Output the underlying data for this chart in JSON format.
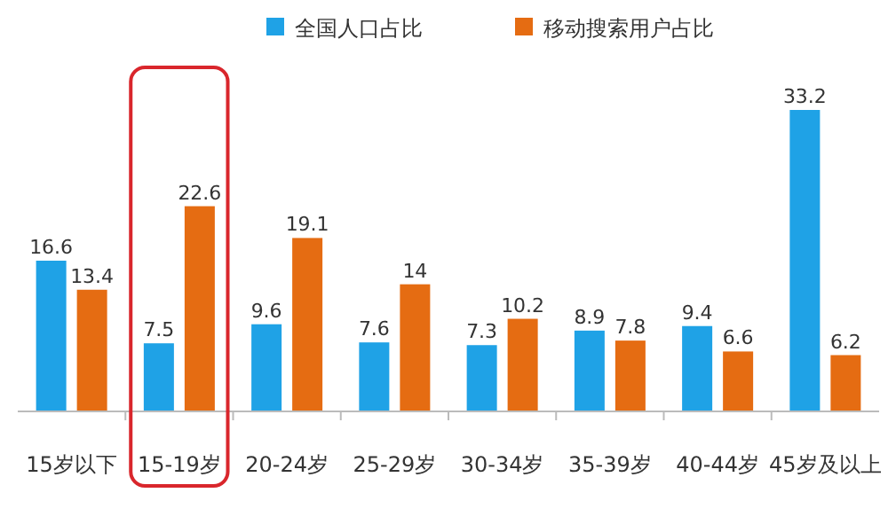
{
  "chart_data": {
    "type": "bar",
    "categories": [
      "15岁以下",
      "15-19岁",
      "20-24岁",
      "25-29岁",
      "30-34岁",
      "35-39岁",
      "40-44岁",
      "45岁及以上"
    ],
    "series": [
      {
        "name": "全国人口占比",
        "color": "#1fa2e6",
        "values": [
          16.6,
          7.5,
          9.6,
          7.6,
          7.3,
          8.9,
          9.4,
          33.2
        ]
      },
      {
        "name": "移动搜索用户占比",
        "color": "#e56c12",
        "values": [
          13.4,
          22.6,
          19.1,
          14.0,
          10.2,
          7.8,
          6.6,
          6.2
        ]
      }
    ],
    "data_labels": true,
    "legend": "top"
  }
}
